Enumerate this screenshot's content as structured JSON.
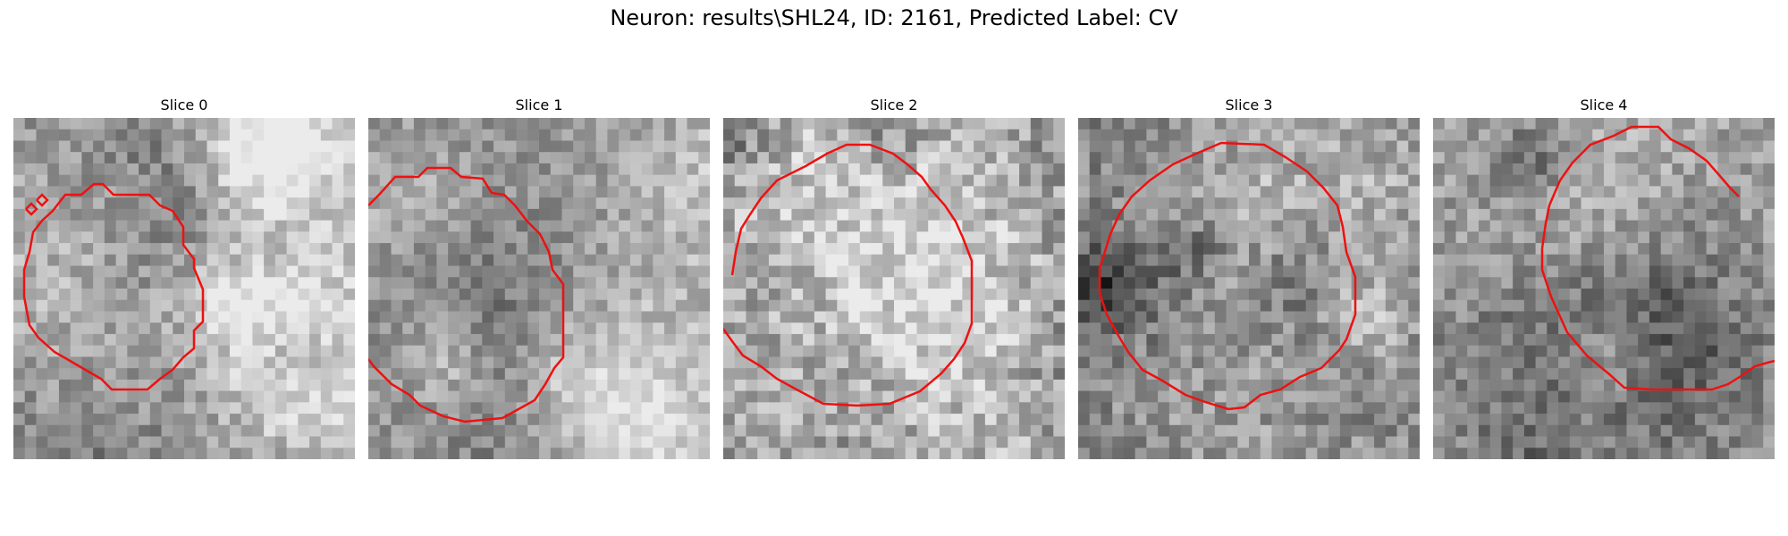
{
  "figure": {
    "title": "Neuron: results\\SHL24, ID: 2161, Predicted Label: CV",
    "contour_color": "#ee1111"
  },
  "panels": [
    {
      "title": "Slice 0",
      "seed": 11,
      "contrast": 0.9
    },
    {
      "title": "Slice 1",
      "seed": 23,
      "contrast": 0.8
    },
    {
      "title": "Slice 2",
      "seed": 37,
      "contrast": 1.2
    },
    {
      "title": "Slice 3",
      "seed": 41,
      "contrast": 1.0
    },
    {
      "title": "Slice 4",
      "seed": 53,
      "contrast": 0.9
    }
  ]
}
